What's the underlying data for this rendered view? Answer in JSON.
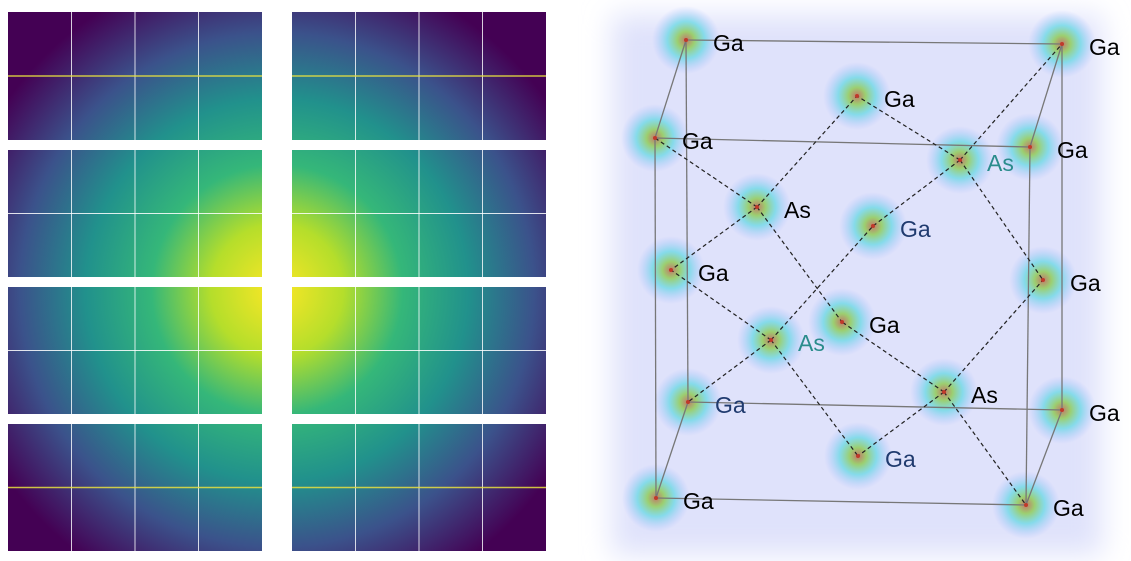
{
  "structure": {
    "atoms": [
      {
        "label": "Ga"
      },
      {
        "label": "Ga"
      },
      {
        "label": "Ga"
      },
      {
        "label": "Ga"
      },
      {
        "label": "Ga"
      },
      {
        "label": "As"
      },
      {
        "label": "As"
      },
      {
        "label": "Ga"
      },
      {
        "label": "Ga"
      },
      {
        "label": "Ga"
      },
      {
        "label": "Ga"
      },
      {
        "label": "As"
      },
      {
        "label": "Ga"
      },
      {
        "label": "As"
      },
      {
        "label": "Ga"
      },
      {
        "label": "Ga"
      },
      {
        "label": "Ga"
      },
      {
        "label": "Ga"
      }
    ]
  }
}
